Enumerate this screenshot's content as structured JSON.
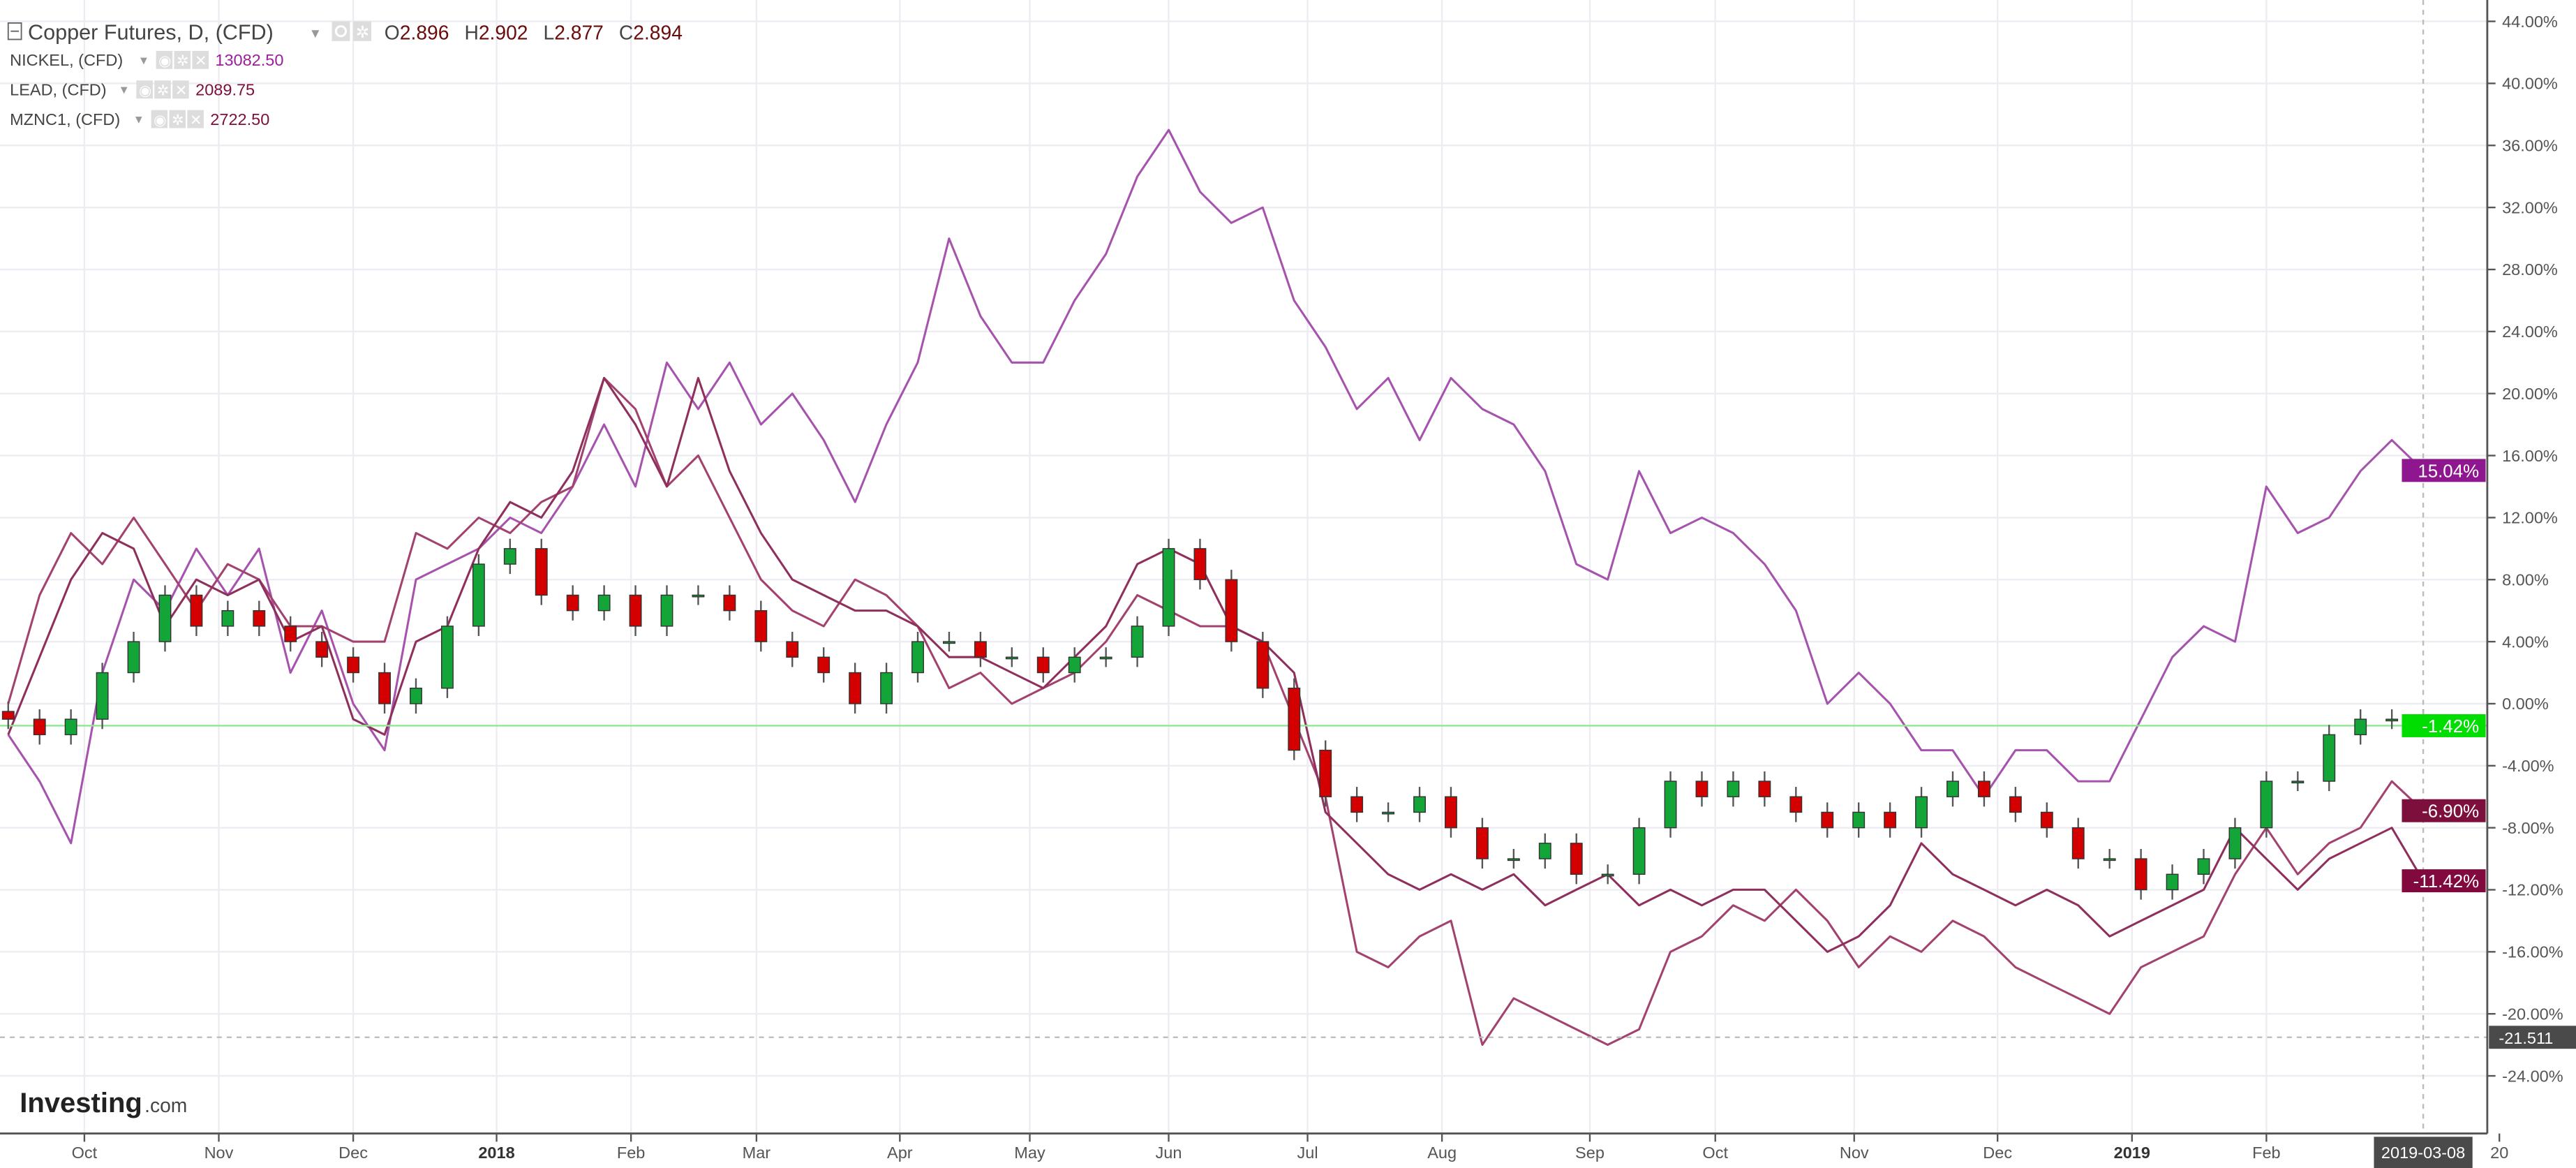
{
  "legend": {
    "main": {
      "symbol": "Copper Futures, D, (CFD)",
      "o_label": "O",
      "o": "2.896",
      "h_label": "H",
      "h": "2.902",
      "l_label": "L",
      "l": "2.877",
      "c_label": "C",
      "c": "2.894"
    },
    "overlays": [
      {
        "symbol": "NICKEL, (CFD)",
        "value": "13082.50",
        "color": "#9b1f9b"
      },
      {
        "symbol": "LEAD, (CFD)",
        "value": "2089.75",
        "color": "#7d0f3c"
      },
      {
        "symbol": "MZNC1, (CFD)",
        "value": "2722.50",
        "color": "#7d0f3c"
      }
    ]
  },
  "logo": {
    "brand": "Investing",
    "suffix": ".com"
  },
  "crosshair": {
    "date_label": "2019-03-08",
    "price_label": "-21.511",
    "price": -21.511
  },
  "chart_data": {
    "type": "line",
    "ylim": [
      -28,
      46
    ],
    "yticks": [
      44,
      40,
      36,
      32,
      28,
      24,
      20,
      16,
      12,
      8,
      4,
      0,
      -4,
      -8,
      -12,
      -16,
      -20,
      -24
    ],
    "ytick_labels": [
      "44.00%",
      "40.00%",
      "36.00%",
      "32.00%",
      "28.00%",
      "24.00%",
      "20.00%",
      "16.00%",
      "12.00%",
      "8.00%",
      "4.00%",
      "0.00%",
      "-4.00%",
      "-8.00%",
      "-12.00%",
      "-16.00%",
      "-20.00%",
      "-24.00%"
    ],
    "xticks": [
      {
        "label": "Oct",
        "date": "2017-10-02"
      },
      {
        "label": "Nov",
        "date": "2017-11-01"
      },
      {
        "label": "Dec",
        "date": "2017-12-01"
      },
      {
        "label": "2018",
        "date": "2018-01-02"
      },
      {
        "label": "Feb",
        "date": "2018-02-01"
      },
      {
        "label": "Mar",
        "date": "2018-03-01"
      },
      {
        "label": "Apr",
        "date": "2018-04-02"
      },
      {
        "label": "May",
        "date": "2018-05-01"
      },
      {
        "label": "Jun",
        "date": "2018-06-01"
      },
      {
        "label": "Jul",
        "date": "2018-07-02"
      },
      {
        "label": "Aug",
        "date": "2018-08-01"
      },
      {
        "label": "Sep",
        "date": "2018-09-03"
      },
      {
        "label": "Oct",
        "date": "2018-10-01"
      },
      {
        "label": "Nov",
        "date": "2018-11-01"
      },
      {
        "label": "Dec",
        "date": "2018-12-03"
      },
      {
        "label": "2019",
        "date": "2019-01-02"
      },
      {
        "label": "Feb",
        "date": "2019-02-01"
      },
      {
        "label": "20",
        "date": "2019-03-25"
      }
    ],
    "x": [
      "2017-09-15",
      "2017-09-22",
      "2017-09-29",
      "2017-10-06",
      "2017-10-13",
      "2017-10-20",
      "2017-10-27",
      "2017-11-03",
      "2017-11-10",
      "2017-11-17",
      "2017-11-24",
      "2017-12-01",
      "2017-12-08",
      "2017-12-15",
      "2017-12-22",
      "2017-12-29",
      "2018-01-05",
      "2018-01-12",
      "2018-01-19",
      "2018-01-26",
      "2018-02-02",
      "2018-02-09",
      "2018-02-16",
      "2018-02-23",
      "2018-03-02",
      "2018-03-09",
      "2018-03-16",
      "2018-03-23",
      "2018-03-30",
      "2018-04-06",
      "2018-04-13",
      "2018-04-20",
      "2018-04-27",
      "2018-05-04",
      "2018-05-11",
      "2018-05-18",
      "2018-05-25",
      "2018-06-01",
      "2018-06-08",
      "2018-06-15",
      "2018-06-22",
      "2018-06-29",
      "2018-07-06",
      "2018-07-13",
      "2018-07-20",
      "2018-07-27",
      "2018-08-03",
      "2018-08-10",
      "2018-08-17",
      "2018-08-24",
      "2018-08-31",
      "2018-09-07",
      "2018-09-14",
      "2018-09-21",
      "2018-09-28",
      "2018-10-05",
      "2018-10-12",
      "2018-10-19",
      "2018-10-26",
      "2018-11-02",
      "2018-11-09",
      "2018-11-16",
      "2018-11-23",
      "2018-11-30",
      "2018-12-07",
      "2018-12-14",
      "2018-12-21",
      "2018-12-28",
      "2019-01-04",
      "2019-01-11",
      "2019-01-18",
      "2019-01-25",
      "2019-02-01",
      "2019-02-08",
      "2019-02-15",
      "2019-02-22",
      "2019-03-01",
      "2019-03-08"
    ],
    "candles": {
      "name": "Copper Futures",
      "close": [
        -1,
        -2,
        -1,
        2,
        4,
        7,
        5,
        6,
        5,
        4,
        3,
        2,
        0,
        1,
        5,
        9,
        10,
        7,
        6,
        7,
        5,
        7,
        7,
        6,
        4,
        3,
        2,
        0,
        2,
        4,
        4,
        3,
        3,
        2,
        3,
        3,
        5,
        10,
        8,
        4,
        1,
        -3,
        -6,
        -7,
        -7,
        -6,
        -8,
        -10,
        -10,
        -9,
        -11,
        -11,
        -8,
        -5,
        -6,
        -5,
        -6,
        -7,
        -8,
        -7,
        -8,
        -6,
        -5,
        -6,
        -7,
        -8,
        -10,
        -10,
        -12,
        -11,
        -10,
        -8,
        -5,
        -5,
        -2,
        -1,
        -1,
        -1.42
      ],
      "last_label": "-1.42%",
      "up_color": "#13a538",
      "down_color": "#d40000",
      "label_color": "#00dd00"
    },
    "series": [
      {
        "name": "NICKEL, (CFD)",
        "color": "#a653ad",
        "label_bg": "#8e168e",
        "last_label": "15.04%",
        "values": [
          -2,
          -5,
          -9,
          2,
          8,
          6,
          10,
          7,
          10,
          2,
          6,
          0,
          -3,
          8,
          9,
          10,
          12,
          11,
          14,
          18,
          14,
          22,
          19,
          22,
          18,
          20,
          17,
          13,
          18,
          22,
          30,
          25,
          22,
          22,
          26,
          29,
          34,
          37,
          33,
          31,
          32,
          26,
          23,
          19,
          21,
          17,
          21,
          19,
          18,
          15,
          9,
          8,
          15,
          11,
          12,
          11,
          9,
          6,
          0,
          2,
          0,
          -3,
          -3,
          -6,
          -3,
          -3,
          -5,
          -5,
          -1,
          3,
          5,
          4,
          14,
          11,
          12,
          15,
          17,
          15.04
        ]
      },
      {
        "name": "LEAD, (CFD)",
        "color": "#a2436f",
        "label_bg": "#7d0f3c",
        "last_label": "-6.90%",
        "values": [
          0,
          7,
          11,
          9,
          12,
          9,
          6,
          9,
          8,
          5,
          5,
          4,
          4,
          11,
          10,
          12,
          11,
          13,
          14,
          21,
          19,
          14,
          16,
          12,
          8,
          6,
          5,
          8,
          7,
          5,
          1,
          2,
          0,
          1,
          2,
          4,
          7,
          6,
          5,
          5,
          4,
          -1,
          -6,
          -16,
          -17,
          -15,
          -14,
          -22,
          -19,
          -20,
          -21,
          -22,
          -21,
          -16,
          -15,
          -13,
          -14,
          -12,
          -14,
          -17,
          -15,
          -16,
          -14,
          -15,
          -17,
          -18,
          -19,
          -20,
          -17,
          -16,
          -15,
          -11,
          -8,
          -11,
          -9,
          -8,
          -5,
          -6.9
        ]
      },
      {
        "name": "MZNC1, (CFD)",
        "color": "#8e2f5c",
        "label_bg": "#82093e",
        "last_label": "-11.42%",
        "values": [
          -2,
          3,
          8,
          11,
          10,
          5,
          8,
          7,
          8,
          4,
          5,
          -1,
          -2,
          4,
          5,
          10,
          13,
          12,
          15,
          21,
          18,
          14,
          21,
          15,
          11,
          8,
          7,
          6,
          6,
          5,
          3,
          3,
          2,
          1,
          3,
          5,
          9,
          10,
          9,
          5,
          4,
          2,
          -7,
          -9,
          -11,
          -12,
          -11,
          -12,
          -11,
          -13,
          -12,
          -11,
          -13,
          -12,
          -13,
          -12,
          -12,
          -14,
          -16,
          -15,
          -13,
          -9,
          -11,
          -12,
          -13,
          -12,
          -13,
          -15,
          -14,
          -13,
          -12,
          -8,
          -10,
          -12,
          -10,
          -9,
          -8,
          -11.42
        ]
      }
    ]
  }
}
